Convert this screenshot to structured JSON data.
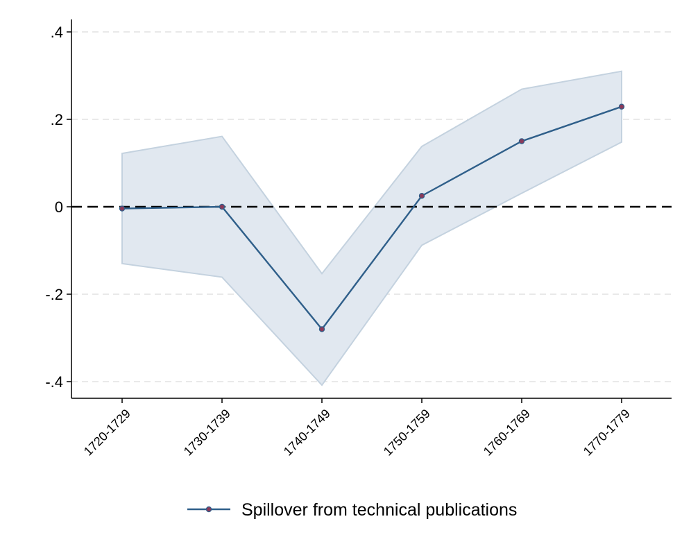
{
  "chart_data": {
    "type": "line",
    "categories": [
      "1720-1729",
      "1730-1739",
      "1740-1749",
      "1750-1759",
      "1760-1769",
      "1770-1779"
    ],
    "series": [
      {
        "name": "Spillover from technical publications",
        "values": [
          -0.004,
          0.0,
          -0.28,
          0.025,
          0.15,
          0.229
        ],
        "ci_upper": [
          0.122,
          0.161,
          -0.153,
          0.138,
          0.269,
          0.31
        ],
        "ci_lower": [
          -0.13,
          -0.161,
          -0.408,
          -0.088,
          0.031,
          0.148
        ]
      }
    ],
    "yticks": [
      ".4",
      ".2",
      "0",
      "-.2",
      "-.4"
    ],
    "ytick_values": [
      0.4,
      0.2,
      0,
      -0.2,
      -0.4
    ],
    "ylim": [
      -0.44,
      0.44
    ],
    "reference_line": 0,
    "grid": true,
    "legend_position": "bottom",
    "colors": {
      "line": "#2f5f8a",
      "marker": "#8a3a5a",
      "ci_fill": "#e1e8f0",
      "ci_stroke": "#c4d2df",
      "grid": "#dcdcdc",
      "reference": "#000000"
    }
  }
}
